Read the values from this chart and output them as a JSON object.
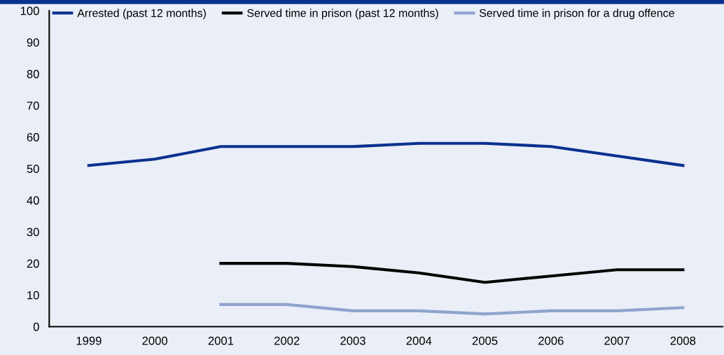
{
  "chart_data": {
    "type": "line",
    "categories": [
      "1999",
      "2000",
      "2001",
      "2002",
      "2003",
      "2004",
      "2005",
      "2006",
      "2007",
      "2008"
    ],
    "series": [
      {
        "name": "Arrested (past 12 months)",
        "color": "#0b318f",
        "values": [
          51,
          53,
          57,
          57,
          57,
          58,
          58,
          57,
          54,
          51
        ]
      },
      {
        "name": "Served time in prison (past 12 months)",
        "color": "#000000",
        "values": [
          null,
          null,
          20,
          20,
          19,
          17,
          14,
          16,
          18,
          18
        ]
      },
      {
        "name": "Served time in prison for a drug offence",
        "color": "#8fa3cf",
        "values": [
          null,
          null,
          7,
          7,
          5,
          5,
          4,
          5,
          5,
          6
        ]
      }
    ],
    "ylim": [
      0,
      100
    ],
    "yticks": [
      0,
      10,
      20,
      30,
      40,
      50,
      60,
      70,
      80,
      90,
      100
    ],
    "grid": false,
    "legend": "top",
    "marker": "none",
    "line_style": "solid"
  }
}
